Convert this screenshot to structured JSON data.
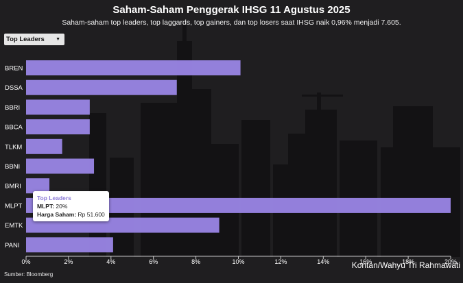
{
  "header": {
    "title": "Saham-Saham Penggerak IHSG 11 Agustus 2025",
    "subtitle": "Saham-saham top leaders, top laggards, top gainers, dan top losers saat IHSG naik 0,96% menjadi 7.605."
  },
  "filter": {
    "selected": "Top Leaders"
  },
  "tooltip": {
    "title": "Top Leaders",
    "row1_label": "MLPT:",
    "row1_value": "20%",
    "row2_label": "Harga Saham:",
    "row2_value": "Rp 51.600"
  },
  "credit": "Kontan/Wahyu Tri Rahmawati",
  "source": "Sumber: Bloomberg",
  "colors": {
    "bar": "#9a86e6",
    "background": "#1f1e20",
    "skyline": "#121113"
  },
  "chart_data": {
    "type": "bar",
    "orientation": "horizontal",
    "categories": [
      "BREN",
      "DSSA",
      "BBRI",
      "BBCA",
      "TLKM",
      "BBNI",
      "BMRI",
      "MLPT",
      "EMTK",
      "PANI"
    ],
    "values": [
      10.1,
      7.1,
      3.0,
      3.0,
      1.7,
      3.2,
      1.1,
      20.0,
      9.1,
      4.1
    ],
    "xlim": [
      0,
      20
    ],
    "xticks": [
      "0%",
      "2%",
      "4%",
      "6%",
      "8%",
      "10%",
      "12%",
      "14%",
      "16%",
      "18%",
      "20%"
    ],
    "xtick_values": [
      0,
      2,
      4,
      6,
      8,
      10,
      12,
      14,
      16,
      18,
      20
    ],
    "grid": false,
    "legend": "none"
  }
}
